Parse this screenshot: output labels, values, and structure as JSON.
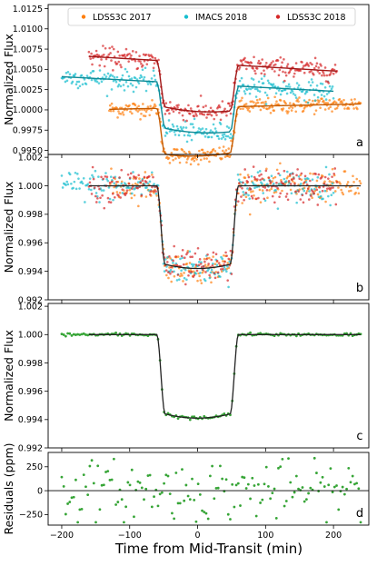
{
  "chart_data": [
    {
      "panel_label": "a",
      "type": "scatter",
      "ylabel": "Normalized Flux",
      "xlim": [
        -220,
        252
      ],
      "ylim": [
        0.9945,
        1.013
      ],
      "yticks": [
        "1.0125",
        "1.0100",
        "1.0075",
        "1.0050",
        "1.0025",
        "1.0000",
        "0.9975",
        "0.9950"
      ],
      "legend": {
        "placement": "top",
        "entries": [
          "LDSS3C 2017",
          "IMACS 2018",
          "LDSS3C 2018"
        ]
      },
      "series": [
        {
          "name": "LDSS3C 2017",
          "color": "#ff7f0e",
          "x_range": [
            -130,
            240
          ],
          "baseline": 1.0003,
          "depth": 0.006,
          "noise": 0.0005,
          "n": 300
        },
        {
          "name": "IMACS 2018",
          "color": "#17becf",
          "x_range": [
            -200,
            200
          ],
          "baseline": 1.0032,
          "depth": 0.006,
          "noise": 0.0006,
          "n": 300
        },
        {
          "name": "LDSS3C 2018",
          "color": "#d62728",
          "x_range": [
            -160,
            205
          ],
          "baseline": 1.0058,
          "depth": 0.006,
          "noise": 0.0006,
          "n": 300
        }
      ]
    },
    {
      "panel_label": "b",
      "type": "scatter",
      "ylabel": "Normalized Flux",
      "xlim": [
        -220,
        252
      ],
      "ylim": [
        0.992,
        1.0022
      ],
      "yticks": [
        "1.002",
        "1.000",
        "0.998",
        "0.996",
        "0.994",
        "0.992"
      ],
      "model": {
        "baseline": 1.0,
        "depth": 0.0058,
        "ingress_egress_min": [
          -60,
          60
        ]
      },
      "series": [
        {
          "name": "LDSS3C 2017",
          "color": "#ff7f0e",
          "x_range": [
            -130,
            240
          ],
          "noise": 0.0005,
          "n": 260
        },
        {
          "name": "IMACS 2018",
          "color": "#17becf",
          "x_range": [
            -200,
            200
          ],
          "noise": 0.00055,
          "n": 260
        },
        {
          "name": "LDSS3C 2018",
          "color": "#d62728",
          "x_range": [
            -160,
            205
          ],
          "noise": 0.0006,
          "n": 260
        }
      ]
    },
    {
      "panel_label": "c",
      "type": "scatter",
      "ylabel": "Normalized Flux",
      "xlim": [
        -220,
        252
      ],
      "ylim": [
        0.992,
        1.0022
      ],
      "yticks": [
        "1.002",
        "1.000",
        "0.998",
        "0.996",
        "0.994",
        "0.992"
      ],
      "model": {
        "baseline": 1.0,
        "depth": 0.0059,
        "ingress_egress_min": [
          -60,
          60
        ]
      },
      "series": [
        {
          "name": "combined binned",
          "color": "#2ca02c",
          "x_range": [
            -200,
            240
          ],
          "noise": 6e-05,
          "n": 150
        }
      ]
    },
    {
      "panel_label": "d",
      "type": "scatter",
      "ylabel": "Residuals (ppm)",
      "xlabel": "Time from Mid-Transit (min)",
      "xlim": [
        -220,
        252
      ],
      "ylim": [
        -360,
        400
      ],
      "yticks": [
        "250",
        "0",
        "-250"
      ],
      "xticks": [
        "-200",
        "-100",
        "0",
        "100",
        "200"
      ],
      "series": [
        {
          "name": "residuals",
          "color": "#2ca02c",
          "x_range": [
            -200,
            240
          ],
          "amplitude_ppm": 280,
          "n": 150
        }
      ]
    }
  ]
}
